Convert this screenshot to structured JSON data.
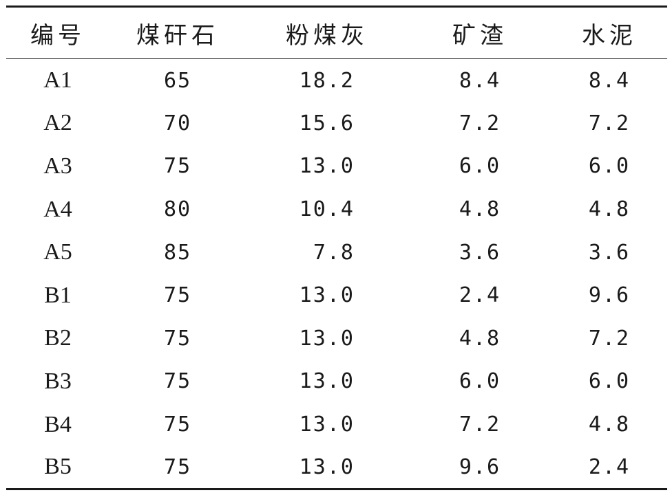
{
  "table": {
    "headers": [
      "编号",
      "煤矸石",
      "粉煤灰",
      "矿渣",
      "水泥"
    ],
    "rows": [
      [
        "A1",
        "65",
        "18.2",
        "8.4",
        "8.4"
      ],
      [
        "A2",
        "70",
        "15.6",
        "7.2",
        "7.2"
      ],
      [
        "A3",
        "75",
        "13.0",
        "6.0",
        "6.0"
      ],
      [
        "A4",
        "80",
        "10.4",
        "4.8",
        "4.8"
      ],
      [
        "A5",
        "85",
        "7.8",
        "3.6",
        "3.6"
      ],
      [
        "B1",
        "75",
        "13.0",
        "2.4",
        "9.6"
      ],
      [
        "B2",
        "75",
        "13.0",
        "4.8",
        "7.2"
      ],
      [
        "B3",
        "75",
        "13.0",
        "6.0",
        "6.0"
      ],
      [
        "B4",
        "75",
        "13.0",
        "7.2",
        "4.8"
      ],
      [
        "B5",
        "75",
        "13.0",
        "9.6",
        "2.4"
      ]
    ]
  }
}
